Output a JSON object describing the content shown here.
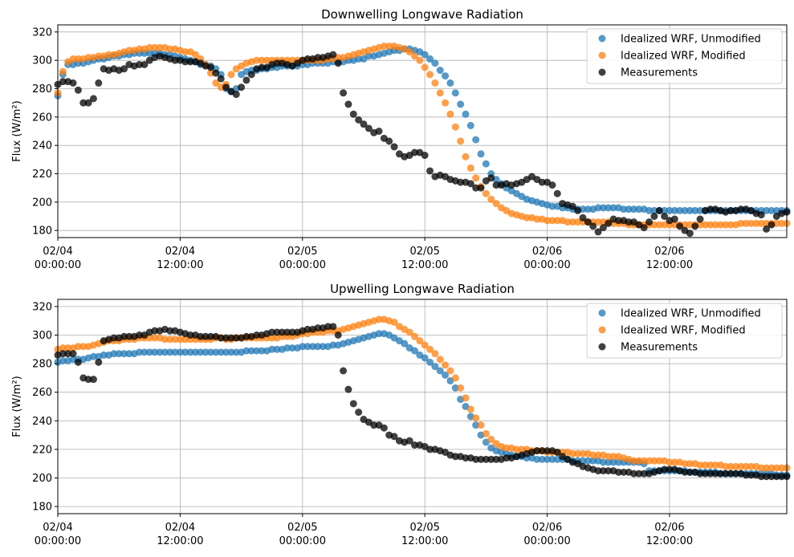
{
  "chart_data": [
    {
      "type": "scatter",
      "title": "Downwelling Longwave Radiation",
      "xlabel": "",
      "ylabel": "Flux (W/m²)",
      "ylim": [
        175,
        325
      ],
      "xlim_hours": [
        0,
        71.5
      ],
      "yticks": [
        180,
        200,
        220,
        240,
        260,
        280,
        300,
        320
      ],
      "xticks": [
        {
          "line1": "02/04",
          "line2": "00:00:00",
          "hours": 0
        },
        {
          "line1": "02/04",
          "line2": "12:00:00",
          "hours": 12
        },
        {
          "line1": "02/05",
          "line2": "00:00:00",
          "hours": 24
        },
        {
          "line1": "02/05",
          "line2": "12:00:00",
          "hours": 36
        },
        {
          "line1": "02/06",
          "line2": "00:00:00",
          "hours": 48
        },
        {
          "line1": "02/06",
          "line2": "12:00:00",
          "hours": 60
        }
      ],
      "grid": true,
      "legend_position": "top-right",
      "series": [
        {
          "name": "Idealized WRF, Unmodified",
          "color": "#1f77b4",
          "step_hours": 0.5,
          "start_hours": 0,
          "values": [
            275,
            290,
            297,
            297,
            298,
            298,
            299,
            300,
            301,
            301,
            302,
            303,
            303,
            304,
            304,
            305,
            305,
            305,
            305,
            305,
            305,
            304,
            304,
            303,
            302,
            301,
            300,
            299,
            297,
            297,
            296,
            294,
            290,
            280,
            278,
            280,
            290,
            292,
            293,
            293,
            294,
            294,
            295,
            295,
            296,
            296,
            296,
            296,
            297,
            297,
            298,
            298,
            298,
            298,
            299,
            299,
            299,
            300,
            300,
            301,
            301,
            303,
            303,
            304,
            305,
            306,
            307,
            307,
            308,
            308,
            307,
            306,
            304,
            301,
            298,
            293,
            289,
            284,
            277,
            269,
            262,
            254,
            244,
            234,
            227,
            220,
            216,
            213,
            210,
            208,
            206,
            204,
            202,
            201,
            200,
            199,
            198,
            197,
            197,
            196,
            196,
            195,
            195,
            195,
            195,
            195,
            196,
            196,
            196,
            196,
            196,
            195,
            195,
            195,
            195,
            195,
            194,
            194,
            194,
            194,
            194,
            194,
            194,
            194,
            194,
            194,
            194,
            194,
            194,
            194,
            194,
            194,
            194,
            194,
            194,
            194,
            194,
            194,
            194,
            194,
            194,
            194,
            194,
            194,
            195,
            195,
            195,
            196,
            196,
            197,
            197,
            197,
            197,
            197,
            196,
            196,
            196,
            196,
            197,
            197,
            197,
            198,
            198,
            198,
            198
          ]
        },
        {
          "name": "Idealized WRF, Modified",
          "color": "#ff7f0e",
          "step_hours": 0.5,
          "start_hours": 0,
          "values": [
            277,
            292,
            299,
            301,
            301,
            301,
            302,
            302,
            303,
            303,
            304,
            304,
            305,
            306,
            307,
            307,
            308,
            308,
            309,
            309,
            309,
            309,
            308,
            308,
            307,
            306,
            306,
            304,
            301,
            297,
            291,
            284,
            281,
            283,
            290,
            294,
            296,
            298,
            299,
            300,
            300,
            300,
            300,
            300,
            300,
            300,
            300,
            300,
            300,
            300,
            300,
            300,
            300,
            301,
            301,
            302,
            302,
            303,
            304,
            305,
            306,
            307,
            308,
            309,
            310,
            310,
            310,
            309,
            308,
            306,
            303,
            300,
            295,
            290,
            284,
            277,
            270,
            262,
            253,
            243,
            232,
            224,
            217,
            211,
            206,
            202,
            199,
            196,
            194,
            192,
            191,
            190,
            189,
            189,
            188,
            188,
            187,
            187,
            187,
            187,
            186,
            186,
            186,
            186,
            186,
            186,
            186,
            186,
            186,
            185,
            185,
            185,
            184,
            184,
            184,
            184,
            184,
            184,
            184,
            184,
            184,
            184,
            184,
            184,
            184,
            184,
            184,
            184,
            184,
            184,
            184,
            184,
            184,
            184,
            185,
            185,
            185,
            185,
            185,
            185,
            185,
            185,
            185,
            185,
            185,
            185,
            185,
            185,
            186,
            186,
            186,
            186,
            187,
            187,
            187,
            188,
            188,
            188,
            188,
            188,
            188,
            189,
            189,
            189,
            190,
            190
          ]
        },
        {
          "name": "Measurements",
          "color": "#000000",
          "step_hours": 0.5,
          "start_hours": 0,
          "values": [
            283,
            285,
            285,
            284,
            279,
            270,
            270,
            273,
            284,
            294,
            293,
            294,
            293,
            294,
            297,
            296,
            297,
            297,
            300,
            302,
            303,
            302,
            301,
            300,
            300,
            299,
            299,
            299,
            298,
            296,
            295,
            291,
            287,
            281,
            278,
            276,
            281,
            286,
            290,
            294,
            295,
            295,
            297,
            298,
            298,
            297,
            296,
            298,
            300,
            301,
            301,
            302,
            302,
            303,
            304,
            298,
            277,
            269,
            262,
            258,
            255,
            252,
            249,
            250,
            245,
            243,
            239,
            234,
            232,
            233,
            235,
            235,
            233,
            222,
            218,
            219,
            218,
            216,
            215,
            214,
            214,
            213,
            210,
            210,
            215,
            217,
            212,
            212,
            213,
            212,
            213,
            214,
            216,
            218,
            216,
            214,
            214,
            212,
            206,
            199,
            198,
            197,
            194,
            189,
            186,
            183,
            179,
            182,
            185,
            188,
            187,
            187,
            186,
            186,
            184,
            182,
            186,
            190,
            194,
            190,
            187,
            188,
            183,
            180,
            178,
            183,
            188,
            194,
            195,
            195,
            194,
            193,
            194,
            194,
            195,
            195,
            194,
            192,
            191,
            181,
            184,
            190,
            192,
            193,
            194,
            196,
            196,
            195,
            195,
            192,
            192,
            193,
            198,
            199
          ]
        }
      ]
    },
    {
      "type": "scatter",
      "title": "Upwelling Longwave Radiation",
      "xlabel": "",
      "ylabel": "Flux (W/m²)",
      "ylim": [
        175,
        325
      ],
      "xlim_hours": [
        0,
        71.5
      ],
      "yticks": [
        180,
        200,
        220,
        240,
        260,
        280,
        300,
        320
      ],
      "xticks": [
        {
          "line1": "02/04",
          "line2": "00:00:00",
          "hours": 0
        },
        {
          "line1": "02/04",
          "line2": "12:00:00",
          "hours": 12
        },
        {
          "line1": "02/05",
          "line2": "00:00:00",
          "hours": 24
        },
        {
          "line1": "02/05",
          "line2": "12:00:00",
          "hours": 36
        },
        {
          "line1": "02/06",
          "line2": "00:00:00",
          "hours": 48
        },
        {
          "line1": "02/06",
          "line2": "12:00:00",
          "hours": 60
        }
      ],
      "grid": true,
      "legend_position": "top-right",
      "series": [
        {
          "name": "Idealized WRF, Unmodified",
          "color": "#1f77b4",
          "step_hours": 0.5,
          "start_hours": 0,
          "values": [
            281,
            282,
            282,
            283,
            283,
            283,
            284,
            285,
            285,
            286,
            286,
            287,
            287,
            287,
            287,
            287,
            288,
            288,
            288,
            288,
            288,
            288,
            288,
            288,
            288,
            288,
            288,
            288,
            288,
            288,
            288,
            288,
            288,
            288,
            288,
            288,
            288,
            289,
            289,
            289,
            289,
            289,
            290,
            290,
            290,
            291,
            291,
            291,
            292,
            292,
            292,
            292,
            292,
            292,
            293,
            293,
            294,
            295,
            296,
            297,
            298,
            299,
            300,
            301,
            301,
            300,
            298,
            296,
            294,
            291,
            289,
            286,
            284,
            281,
            278,
            275,
            272,
            268,
            263,
            255,
            250,
            243,
            237,
            230,
            225,
            221,
            219,
            218,
            217,
            216,
            215,
            215,
            214,
            214,
            213,
            213,
            213,
            213,
            213,
            213,
            213,
            212,
            212,
            212,
            212,
            212,
            212,
            211,
            211,
            211,
            211,
            211,
            211,
            211,
            211,
            210,
            205,
            205,
            205,
            205,
            205,
            205,
            205,
            205,
            204,
            204,
            204,
            204,
            204,
            204,
            203,
            203,
            203,
            203,
            203,
            203,
            203,
            203,
            203,
            203,
            203,
            202,
            202,
            202,
            201,
            201,
            201,
            201,
            200,
            200,
            200,
            200,
            200,
            200,
            200,
            200,
            200,
            200,
            200,
            200,
            200,
            200,
            200,
            200,
            200,
            200,
            201,
            201,
            198
          ]
        },
        {
          "name": "Idealized WRF, Modified",
          "color": "#ff7f0e",
          "step_hours": 0.5,
          "start_hours": 0,
          "values": [
            290,
            291,
            291,
            291,
            292,
            292,
            292,
            293,
            294,
            295,
            296,
            296,
            296,
            297,
            297,
            297,
            298,
            298,
            298,
            298,
            298,
            297,
            297,
            297,
            297,
            297,
            297,
            297,
            297,
            297,
            297,
            298,
            298,
            297,
            297,
            298,
            298,
            298,
            298,
            298,
            298,
            298,
            298,
            298,
            299,
            299,
            299,
            300,
            301,
            301,
            302,
            302,
            302,
            303,
            303,
            303,
            304,
            305,
            306,
            307,
            308,
            309,
            310,
            311,
            311,
            310,
            309,
            306,
            304,
            302,
            299,
            296,
            293,
            290,
            287,
            283,
            279,
            275,
            270,
            263,
            256,
            248,
            242,
            237,
            231,
            227,
            224,
            222,
            221,
            221,
            220,
            220,
            220,
            219,
            219,
            219,
            218,
            218,
            218,
            218,
            218,
            217,
            217,
            217,
            217,
            216,
            216,
            216,
            215,
            215,
            215,
            214,
            213,
            212,
            212,
            212,
            212,
            212,
            212,
            212,
            211,
            211,
            211,
            210,
            210,
            210,
            209,
            209,
            209,
            209,
            209,
            208,
            208,
            208,
            208,
            208,
            208,
            208,
            207,
            207,
            207,
            207,
            207,
            207,
            207,
            207,
            207,
            207,
            207,
            207,
            207,
            207,
            207,
            207,
            207,
            207,
            207,
            207,
            207,
            207,
            207,
            207,
            207
          ]
        },
        {
          "name": "Measurements",
          "color": "#000000",
          "step_hours": 0.5,
          "start_hours": 0,
          "values": [
            286,
            287,
            287,
            287,
            281,
            270,
            269,
            269,
            281,
            296,
            297,
            298,
            298,
            299,
            299,
            299,
            300,
            300,
            302,
            303,
            303,
            304,
            303,
            303,
            302,
            301,
            300,
            300,
            299,
            299,
            299,
            299,
            298,
            298,
            298,
            298,
            298,
            299,
            299,
            300,
            300,
            301,
            302,
            302,
            302,
            302,
            302,
            302,
            303,
            304,
            304,
            305,
            305,
            306,
            306,
            300,
            275,
            262,
            252,
            246,
            241,
            239,
            237,
            237,
            235,
            230,
            229,
            226,
            225,
            226,
            223,
            223,
            222,
            220,
            220,
            219,
            218,
            216,
            215,
            215,
            214,
            214,
            213,
            213,
            213,
            213,
            213,
            213,
            214,
            214,
            215,
            216,
            217,
            218,
            219,
            219,
            219,
            219,
            218,
            215,
            213,
            211,
            210,
            208,
            207,
            206,
            205,
            205,
            205,
            205,
            204,
            204,
            204,
            203,
            203,
            203,
            203,
            204,
            205,
            206,
            206,
            206,
            205,
            204,
            204,
            204,
            203,
            203,
            203,
            203,
            203,
            203,
            203,
            203,
            203,
            202,
            202,
            202,
            201,
            201,
            201,
            201,
            201,
            201,
            202,
            203,
            203,
            203,
            204,
            204,
            204,
            204,
            204,
            204,
            204
          ]
        }
      ]
    }
  ]
}
